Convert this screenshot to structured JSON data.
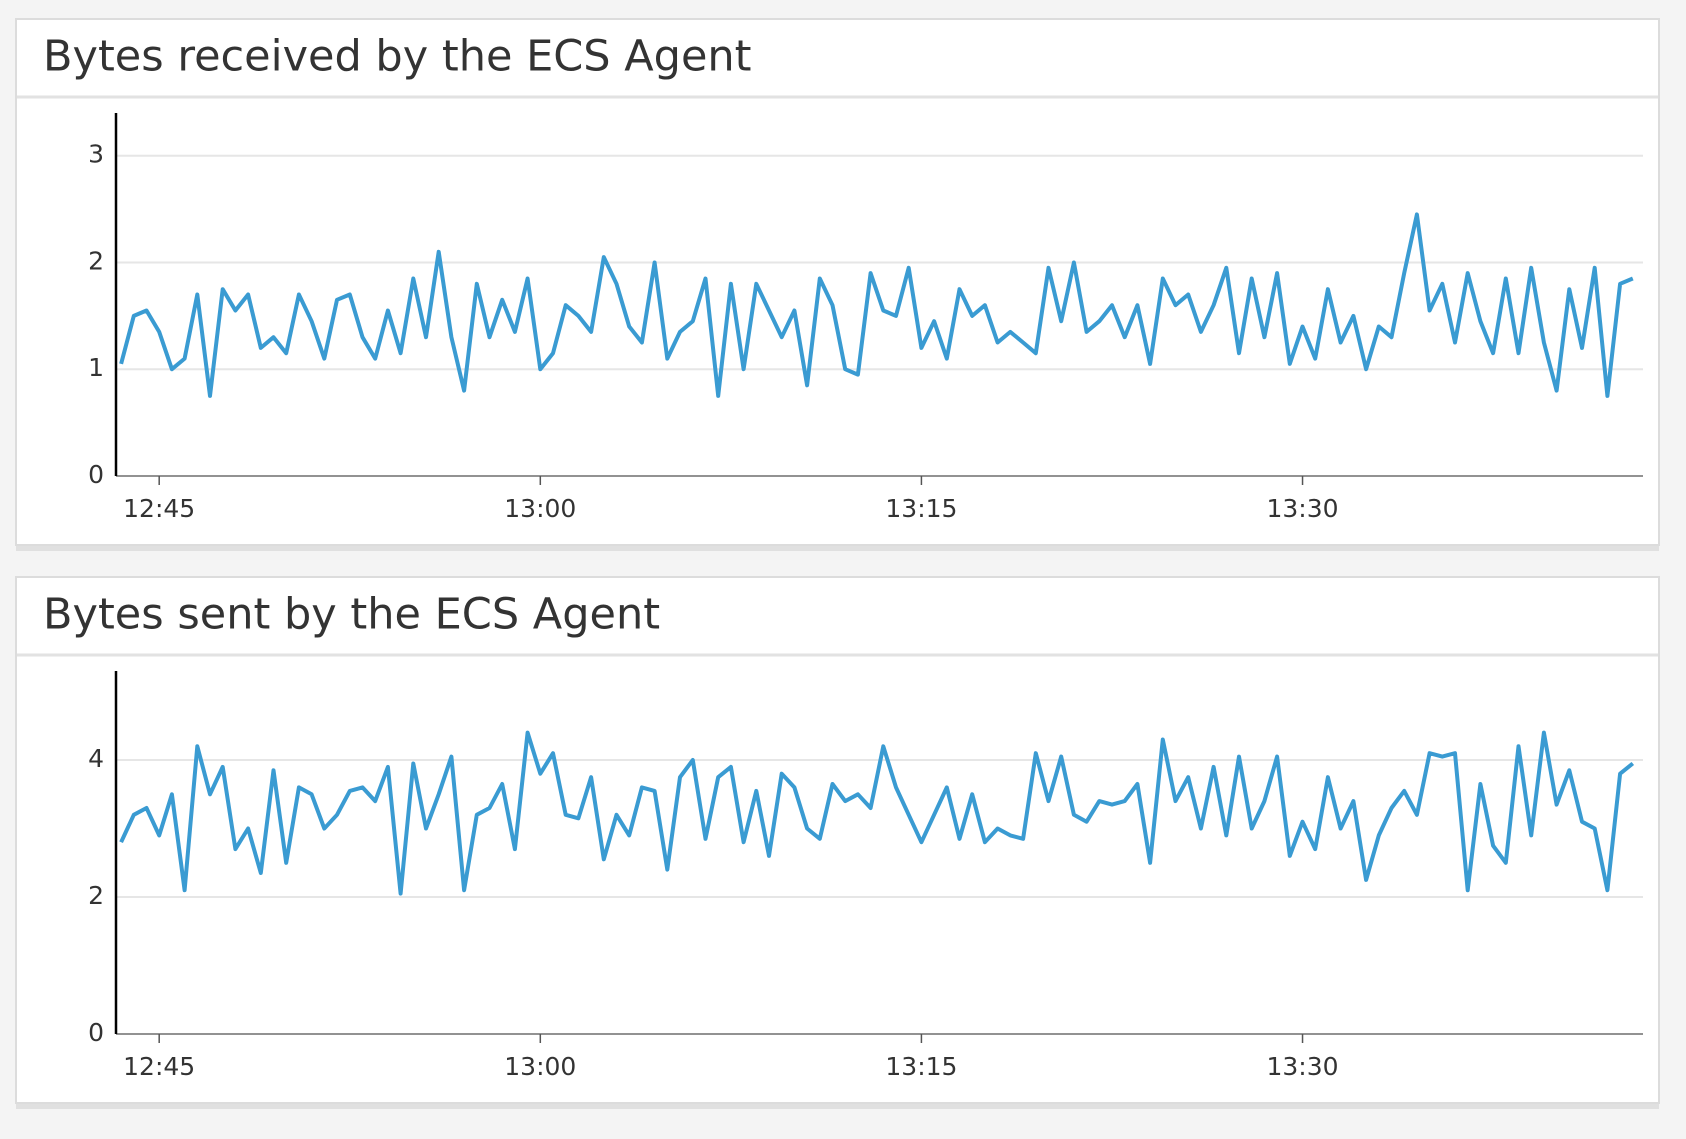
{
  "chart_data": [
    {
      "type": "line",
      "title": "Bytes received by the ECS Agent",
      "x": [
        763.5,
        764,
        764.5,
        765,
        765.5,
        766,
        766.5,
        767,
        767.5,
        768,
        768.5,
        769,
        769.5,
        770,
        770.5,
        771,
        771.5,
        772,
        772.5,
        773,
        773.5,
        774,
        774.5,
        775,
        775.5,
        776,
        776.5,
        777,
        777.5,
        778,
        778.5,
        779,
        779.5,
        780,
        780.5,
        781,
        781.5,
        782,
        782.5,
        783,
        783.5,
        784,
        784.5,
        785,
        785.5,
        786,
        786.5,
        787,
        787.5,
        788,
        788.5,
        789,
        789.5,
        790,
        790.5,
        791,
        791.5,
        792,
        792.5,
        793,
        793.5,
        794,
        794.5,
        795,
        795.5,
        796,
        796.5,
        797,
        797.5,
        798,
        798.5,
        799,
        799.5,
        800,
        800.5,
        801,
        801.5,
        802,
        802.5,
        803,
        803.5,
        804,
        804.5,
        805,
        805.5,
        806,
        806.5,
        807,
        807.5,
        808,
        808.5,
        809,
        809.5,
        810,
        810.5,
        811,
        811.5,
        812,
        812.5,
        813,
        813.5,
        814,
        814.5,
        815,
        815.5,
        816,
        816.5,
        817,
        817.5,
        818,
        818.5,
        819,
        819.5,
        820,
        820.5,
        821,
        821.5,
        822,
        822.5,
        823
      ],
      "series": [
        {
          "color": "#3a9bd2",
          "values": [
            1.05,
            1.5,
            1.55,
            1.35,
            1.0,
            1.1,
            1.7,
            0.75,
            1.75,
            1.55,
            1.7,
            1.2,
            1.3,
            1.15,
            1.7,
            1.45,
            1.1,
            1.65,
            1.7,
            1.3,
            1.1,
            1.55,
            1.15,
            1.85,
            1.3,
            2.1,
            1.3,
            0.8,
            1.8,
            1.3,
            1.65,
            1.35,
            1.85,
            1.0,
            1.15,
            1.6,
            1.5,
            1.35,
            2.05,
            1.8,
            1.4,
            1.25,
            2.0,
            1.1,
            1.35,
            1.45,
            1.85,
            0.75,
            1.8,
            1.0,
            1.8,
            1.55,
            1.3,
            1.55,
            0.85,
            1.85,
            1.6,
            1.0,
            0.95,
            1.9,
            1.55,
            1.5,
            1.95,
            1.2,
            1.45,
            1.1,
            1.75,
            1.5,
            1.6,
            1.25,
            1.35,
            1.25,
            1.15,
            1.95,
            1.45,
            2.0,
            1.35,
            1.45,
            1.6,
            1.3,
            1.6,
            1.05,
            1.85,
            1.6,
            1.7,
            1.35,
            1.6,
            1.95,
            1.15,
            1.85,
            1.3,
            1.9,
            1.05,
            1.4,
            1.1,
            1.75,
            1.25,
            1.5,
            1.0,
            1.4,
            1.3,
            1.9,
            2.45,
            1.55,
            1.8,
            1.25,
            1.9,
            1.45,
            1.15,
            1.85,
            1.15,
            1.95,
            1.25,
            0.8,
            1.75,
            1.2,
            1.95,
            0.75,
            1.8,
            1.85
          ]
        }
      ],
      "xlim": [
        763.3,
        823.4
      ],
      "xticks": [
        {
          "value": 765,
          "label": "12:45"
        },
        {
          "value": 780,
          "label": "13:00"
        },
        {
          "value": 795,
          "label": "13:15"
        },
        {
          "value": 810,
          "label": "13:30"
        }
      ],
      "ylim": [
        0,
        3.4
      ],
      "yticks": [
        0,
        1,
        2,
        3
      ],
      "grid": true
    },
    {
      "type": "line",
      "title": "Bytes sent by the ECS Agent",
      "x": [
        763.5,
        764,
        764.5,
        765,
        765.5,
        766,
        766.5,
        767,
        767.5,
        768,
        768.5,
        769,
        769.5,
        770,
        770.5,
        771,
        771.5,
        772,
        772.5,
        773,
        773.5,
        774,
        774.5,
        775,
        775.5,
        776,
        776.5,
        777,
        777.5,
        778,
        778.5,
        779,
        779.5,
        780,
        780.5,
        781,
        781.5,
        782,
        782.5,
        783,
        783.5,
        784,
        784.5,
        785,
        785.5,
        786,
        786.5,
        787,
        787.5,
        788,
        788.5,
        789,
        789.5,
        790,
        790.5,
        791,
        791.5,
        792,
        792.5,
        793,
        793.5,
        794,
        794.5,
        795,
        795.5,
        796,
        796.5,
        797,
        797.5,
        798,
        798.5,
        799,
        799.5,
        800,
        800.5,
        801,
        801.5,
        802,
        802.5,
        803,
        803.5,
        804,
        804.5,
        805,
        805.5,
        806,
        806.5,
        807,
        807.5,
        808,
        808.5,
        809,
        809.5,
        810,
        810.5,
        811,
        811.5,
        812,
        812.5,
        813,
        813.5,
        814,
        814.5,
        815,
        815.5,
        816,
        816.5,
        817,
        817.5,
        818,
        818.5,
        819,
        819.5,
        820,
        820.5,
        821,
        821.5,
        822,
        822.5,
        823
      ],
      "series": [
        {
          "color": "#3a9bd2",
          "values": [
            2.8,
            3.2,
            3.3,
            2.9,
            3.5,
            2.1,
            4.2,
            3.5,
            3.9,
            2.7,
            3.0,
            2.35,
            3.85,
            2.5,
            3.6,
            3.5,
            3.0,
            3.2,
            3.55,
            3.6,
            3.4,
            3.9,
            2.05,
            3.95,
            3.0,
            3.5,
            4.05,
            2.1,
            3.2,
            3.3,
            3.65,
            2.7,
            4.4,
            3.8,
            4.1,
            3.2,
            3.15,
            3.75,
            2.55,
            3.2,
            2.9,
            3.6,
            3.55,
            2.4,
            3.75,
            4.0,
            2.85,
            3.75,
            3.9,
            2.8,
            3.55,
            2.6,
            3.8,
            3.6,
            3.0,
            2.85,
            3.65,
            3.4,
            3.5,
            3.3,
            4.2,
            3.6,
            3.2,
            2.8,
            3.2,
            3.6,
            2.85,
            3.5,
            2.8,
            3.0,
            2.9,
            2.85,
            4.1,
            3.4,
            4.05,
            3.2,
            3.1,
            3.4,
            3.35,
            3.4,
            3.65,
            2.5,
            4.3,
            3.4,
            3.75,
            3.0,
            3.9,
            2.9,
            4.05,
            3.0,
            3.4,
            4.05,
            2.6,
            3.1,
            2.7,
            3.75,
            3.0,
            3.4,
            2.25,
            2.9,
            3.3,
            3.55,
            3.2,
            4.1,
            4.05,
            4.1,
            2.1,
            3.65,
            2.75,
            2.5,
            4.2,
            2.9,
            4.4,
            3.35,
            3.85,
            3.1,
            3.0,
            2.1,
            3.8,
            3.95
          ]
        }
      ],
      "xlim": [
        763.3,
        823.4
      ],
      "xticks": [
        {
          "value": 765,
          "label": "12:45"
        },
        {
          "value": 780,
          "label": "13:00"
        },
        {
          "value": 795,
          "label": "13:15"
        },
        {
          "value": 810,
          "label": "13:30"
        }
      ],
      "ylim": [
        0,
        5.3
      ],
      "yticks": [
        0,
        2,
        4
      ],
      "grid": true
    }
  ]
}
